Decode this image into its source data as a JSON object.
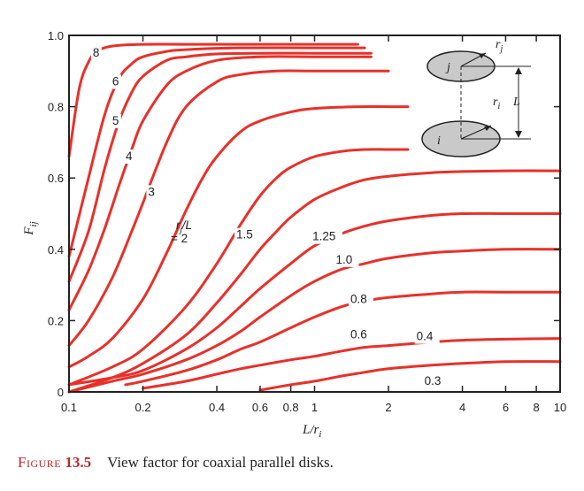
{
  "chart_data": {
    "type": "line",
    "xlabel": "L/r",
    "xlabel_sub": "i",
    "ylabel": "F",
    "ylabel_sub": "ij",
    "xscale": "log",
    "xlim": [
      0.1,
      10
    ],
    "ylim": [
      0,
      1.0
    ],
    "x_ticks": [
      0.1,
      0.2,
      0.4,
      0.6,
      0.8,
      1,
      2,
      4,
      6,
      8,
      10
    ],
    "x_tick_labels": [
      "0.1",
      "0.2",
      "0.4",
      "0.6",
      "0.8",
      "1",
      "2",
      "4",
      "6",
      "8",
      "10"
    ],
    "y_ticks": [
      0,
      0.2,
      0.4,
      0.6,
      0.8,
      1.0
    ],
    "y_tick_labels": [
      "0",
      "0.2",
      "0.4",
      "0.6",
      "0.8",
      "1.0"
    ],
    "grid": false,
    "line_color": "#e8302a",
    "series": [
      {
        "name": "8",
        "x": [
          0.1,
          0.11,
          0.12,
          0.13,
          0.15,
          0.2,
          0.3,
          0.5,
          1.0,
          1.5
        ],
        "y": [
          0.66,
          0.85,
          0.925,
          0.955,
          0.97,
          0.975,
          0.975,
          0.975,
          0.975,
          0.975
        ]
      },
      {
        "name": "6",
        "x": [
          0.1,
          0.12,
          0.14,
          0.16,
          0.18,
          0.2,
          0.25,
          0.3,
          0.5,
          1.0,
          1.6
        ],
        "y": [
          0.38,
          0.6,
          0.78,
          0.88,
          0.92,
          0.94,
          0.955,
          0.96,
          0.965,
          0.965,
          0.965
        ]
      },
      {
        "name": "5",
        "x": [
          0.1,
          0.12,
          0.14,
          0.16,
          0.18,
          0.2,
          0.25,
          0.3,
          0.4,
          0.6,
          1.0,
          1.7
        ],
        "y": [
          0.31,
          0.45,
          0.63,
          0.76,
          0.84,
          0.885,
          0.93,
          0.94,
          0.948,
          0.95,
          0.95,
          0.95
        ]
      },
      {
        "name": "4",
        "x": [
          0.1,
          0.12,
          0.14,
          0.16,
          0.18,
          0.2,
          0.25,
          0.3,
          0.4,
          0.6,
          1.0,
          1.7
        ],
        "y": [
          0.23,
          0.34,
          0.46,
          0.58,
          0.68,
          0.76,
          0.86,
          0.9,
          0.93,
          0.94,
          0.94,
          0.94
        ]
      },
      {
        "name": "3",
        "x": [
          0.1,
          0.12,
          0.15,
          0.18,
          0.2,
          0.25,
          0.3,
          0.4,
          0.5,
          0.7,
          1.0,
          1.5,
          2.0
        ],
        "y": [
          0.13,
          0.2,
          0.32,
          0.45,
          0.53,
          0.7,
          0.8,
          0.87,
          0.89,
          0.9,
          0.9,
          0.9,
          0.9
        ]
      },
      {
        "name": "rj/L = 2",
        "x": [
          0.1,
          0.12,
          0.15,
          0.2,
          0.25,
          0.3,
          0.35,
          0.4,
          0.5,
          0.6,
          0.8,
          1.0,
          1.5,
          2.0,
          2.4
        ],
        "y": [
          0.07,
          0.1,
          0.15,
          0.26,
          0.39,
          0.51,
          0.6,
          0.66,
          0.73,
          0.76,
          0.785,
          0.795,
          0.8,
          0.8,
          0.8
        ]
      },
      {
        "name": "1.5",
        "x": [
          0.1,
          0.15,
          0.2,
          0.3,
          0.4,
          0.5,
          0.6,
          0.7,
          0.8,
          1.0,
          1.3,
          1.6,
          2.0,
          2.4
        ],
        "y": [
          0.02,
          0.07,
          0.12,
          0.24,
          0.36,
          0.47,
          0.55,
          0.6,
          0.63,
          0.66,
          0.675,
          0.68,
          0.68,
          0.68
        ]
      },
      {
        "name": "1.25",
        "x": [
          0.1,
          0.15,
          0.2,
          0.3,
          0.4,
          0.5,
          0.6,
          0.7,
          0.8,
          1.0,
          1.3,
          1.6,
          2.0,
          3.0,
          4.0,
          6.0,
          10.0
        ],
        "y": [
          0.0,
          0.04,
          0.08,
          0.16,
          0.25,
          0.33,
          0.4,
          0.45,
          0.49,
          0.54,
          0.575,
          0.595,
          0.605,
          0.615,
          0.618,
          0.62,
          0.62
        ]
      },
      {
        "name": "1.0",
        "x": [
          0.1,
          0.15,
          0.2,
          0.3,
          0.4,
          0.5,
          0.6,
          0.8,
          1.0,
          1.3,
          1.6,
          2.0,
          3.0,
          4.0,
          6.0,
          10.0
        ],
        "y": [
          0.02,
          0.04,
          0.06,
          0.12,
          0.18,
          0.24,
          0.29,
          0.36,
          0.41,
          0.445,
          0.465,
          0.48,
          0.495,
          0.5,
          0.5,
          0.5
        ]
      },
      {
        "name": "0.8",
        "x": [
          0.1,
          0.15,
          0.2,
          0.3,
          0.4,
          0.5,
          0.6,
          0.8,
          1.0,
          1.3,
          1.6,
          2.0,
          3.0,
          4.0,
          6.0,
          10.0
        ],
        "y": [
          0.0,
          0.03,
          0.05,
          0.09,
          0.13,
          0.17,
          0.21,
          0.27,
          0.31,
          0.345,
          0.36,
          0.375,
          0.39,
          0.395,
          0.4,
          0.4
        ]
      },
      {
        "name": "0.6",
        "x": [
          0.17,
          0.2,
          0.3,
          0.4,
          0.5,
          0.6,
          0.8,
          1.0,
          1.3,
          1.6,
          2.0,
          3.0,
          4.0,
          6.0,
          10.0
        ],
        "y": [
          0.02,
          0.03,
          0.06,
          0.09,
          0.12,
          0.14,
          0.18,
          0.21,
          0.24,
          0.255,
          0.265,
          0.275,
          0.28,
          0.28,
          0.28
        ]
      },
      {
        "name": "0.4",
        "x": [
          0.2,
          0.3,
          0.4,
          0.5,
          0.6,
          0.8,
          1.0,
          1.3,
          1.6,
          2.0,
          3.0,
          4.0,
          6.0,
          10.0
        ],
        "y": [
          0.01,
          0.03,
          0.05,
          0.065,
          0.075,
          0.09,
          0.1,
          0.115,
          0.125,
          0.13,
          0.14,
          0.145,
          0.148,
          0.15
        ]
      },
      {
        "name": "0.3",
        "x": [
          0.6,
          0.8,
          1.0,
          1.3,
          1.6,
          2.0,
          3.0,
          4.0,
          6.0,
          10.0
        ],
        "y": [
          0.005,
          0.02,
          0.03,
          0.045,
          0.055,
          0.065,
          0.075,
          0.08,
          0.085,
          0.085
        ]
      }
    ],
    "curve_labels": [
      {
        "text": "8",
        "x": 0.125,
        "y": 0.94
      },
      {
        "text": "6",
        "x": 0.15,
        "y": 0.86
      },
      {
        "text": "5",
        "x": 0.15,
        "y": 0.75
      },
      {
        "text": "4",
        "x": 0.17,
        "y": 0.65
      },
      {
        "text": "3",
        "x": 0.21,
        "y": 0.55
      },
      {
        "text": "1.5",
        "x": 0.48,
        "y": 0.43
      },
      {
        "text": "1.25",
        "x": 0.98,
        "y": 0.425
      },
      {
        "text": "1.0",
        "x": 1.22,
        "y": 0.36
      },
      {
        "text": "0.8",
        "x": 1.4,
        "y": 0.25
      },
      {
        "text": "0.6",
        "x": 1.4,
        "y": 0.15
      },
      {
        "text": "0.4",
        "x": 2.6,
        "y": 0.145
      },
      {
        "text": "0.3",
        "x": 2.8,
        "y": 0.02
      }
    ],
    "rjL_label": {
      "main": "r",
      "sub": "j",
      "rest": "/L",
      "line2": "= 2"
    }
  },
  "inset": {
    "disk_j": "j",
    "disk_i": "i",
    "radius_j": "r",
    "radius_j_sub": "j",
    "radius_i": "r",
    "radius_i_sub": "i",
    "distance": "L"
  },
  "caption": {
    "figure_word": "Figure",
    "number": "13.5",
    "text": "View factor for coaxial parallel disks."
  }
}
